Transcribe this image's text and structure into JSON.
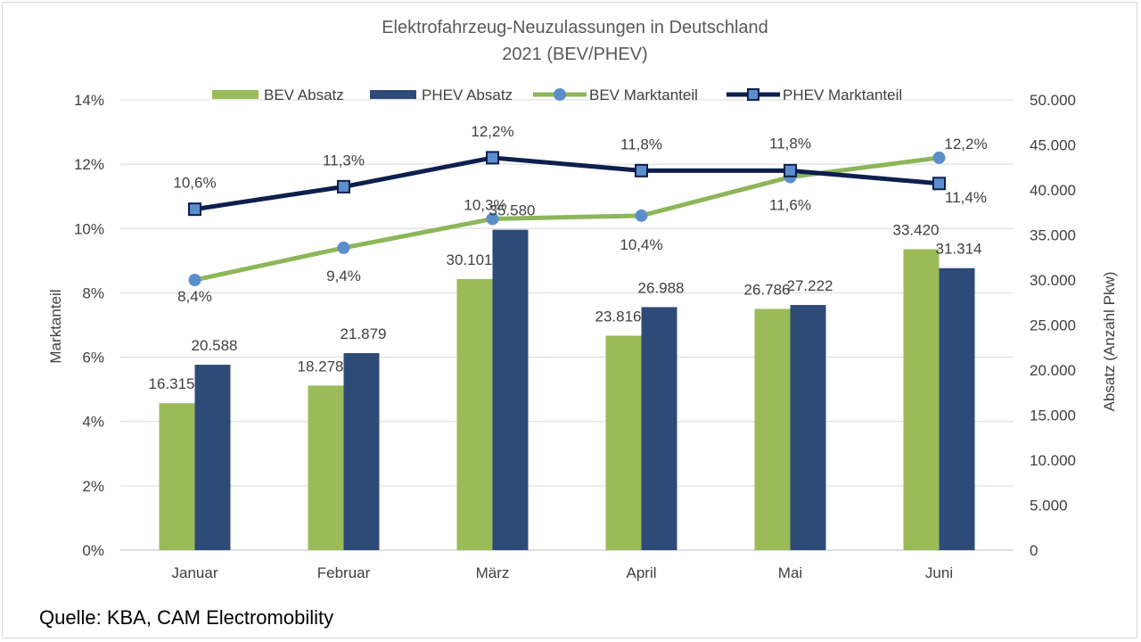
{
  "chart_data": {
    "type": "bar",
    "title_line1": "Elektrofahrzeug-Neuzulassungen in Deutschland",
    "title_line2": "2021 (BEV/PHEV)",
    "categories": [
      "Januar",
      "Februar",
      "März",
      "April",
      "Mai",
      "Juni"
    ],
    "bar_series": [
      {
        "name": "BEV Absatz",
        "color": "#9bbb59",
        "values": [
          16315,
          18278,
          30101,
          23816,
          26786,
          33420
        ],
        "labels": [
          "16.315",
          "18.278",
          "30.101",
          "23.816",
          "26.786",
          "33.420"
        ]
      },
      {
        "name": "PHEV Absatz",
        "color": "#2e4b78",
        "values": [
          20588,
          21879,
          35580,
          26988,
          27222,
          31314
        ],
        "labels": [
          "20.588",
          "21.879",
          "35.580",
          "26.988",
          "27.222",
          "31.314"
        ]
      }
    ],
    "line_series": [
      {
        "name": "BEV Marktanteil",
        "color": "#8db65a",
        "marker": "circle",
        "marker_color": "#5b8fcb",
        "values": [
          8.4,
          9.4,
          10.3,
          10.4,
          11.6,
          12.2
        ],
        "labels": [
          "8,4%",
          "9,4%",
          "10,3%",
          "10,4%",
          "11,6%",
          "12,2%"
        ]
      },
      {
        "name": "PHEV Marktanteil",
        "color": "#0d1f4d",
        "marker": "square",
        "marker_color": "#5b8fcb",
        "values": [
          10.6,
          11.3,
          12.2,
          11.8,
          11.8,
          11.4
        ],
        "labels": [
          "10,6%",
          "11,3%",
          "12,2%",
          "11,8%",
          "11,8%",
          "11,4%"
        ]
      }
    ],
    "y_left": {
      "label": "Marktanteil",
      "min": 0,
      "max": 14,
      "ticks": [
        "0%",
        "2%",
        "4%",
        "6%",
        "8%",
        "10%",
        "12%",
        "14%"
      ]
    },
    "y_right": {
      "label": "Absatz (Anzahl Pkw)",
      "min": 0,
      "max": 50000,
      "ticks": [
        "0",
        "5.000",
        "10.000",
        "15.000",
        "20.000",
        "25.000",
        "30.000",
        "35.000",
        "40.000",
        "45.000",
        "50.000"
      ]
    },
    "grid": true,
    "legend_position": "top"
  },
  "source": "Quelle: KBA, CAM Electromobility"
}
